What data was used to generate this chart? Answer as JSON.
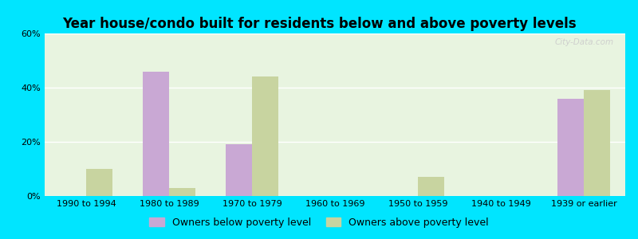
{
  "title": "Year house/condo built for residents below and above poverty levels",
  "categories": [
    "1990 to 1994",
    "1980 to 1989",
    "1970 to 1979",
    "1960 to 1969",
    "1950 to 1959",
    "1940 to 1949",
    "1939 or earlier"
  ],
  "below_poverty": [
    0,
    46,
    19,
    0,
    0,
    0,
    36
  ],
  "above_poverty": [
    10,
    3,
    44,
    0,
    7,
    0,
    39
  ],
  "below_color": "#c9a8d4",
  "above_color": "#c8d4a0",
  "background_color": "#e8f4e0",
  "outer_bg_color": "#00e5ff",
  "ylim": [
    0,
    60
  ],
  "yticks": [
    0,
    20,
    40,
    60
  ],
  "ytick_labels": [
    "0%",
    "20%",
    "40%",
    "60%"
  ],
  "bar_width": 0.32,
  "legend_below_label": "Owners below poverty level",
  "legend_above_label": "Owners above poverty level",
  "title_fontsize": 12,
  "tick_fontsize": 8,
  "legend_fontsize": 9,
  "watermark": "City-Data.com"
}
